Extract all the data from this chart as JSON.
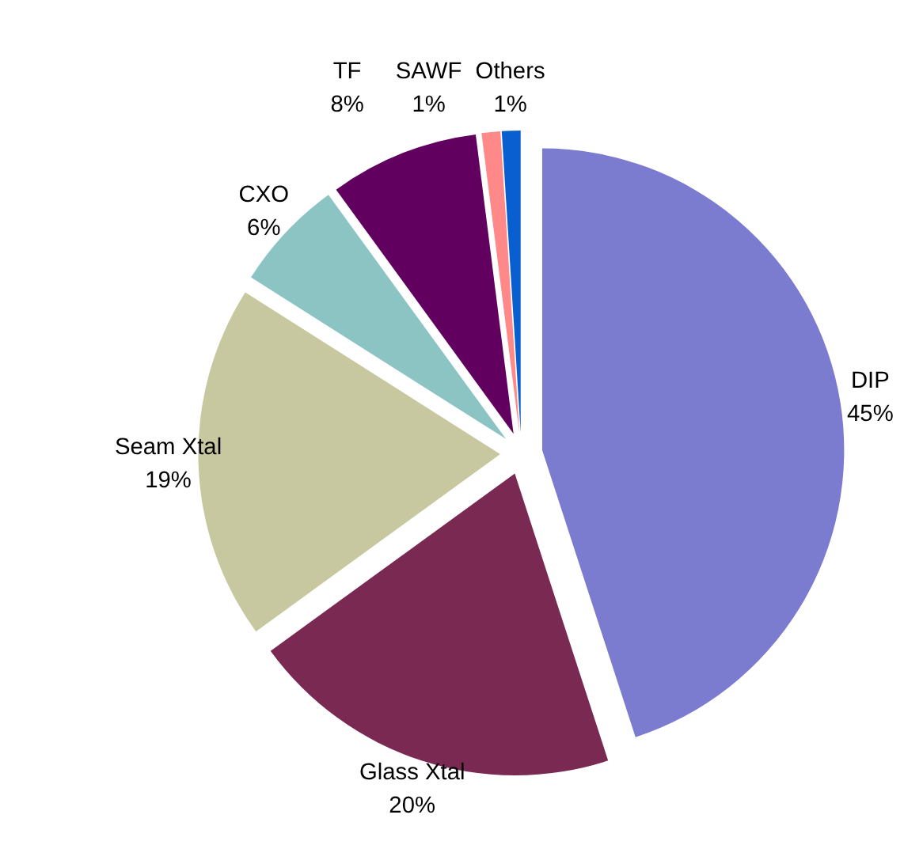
{
  "chart_data": {
    "type": "pie",
    "categories": [
      "DIP",
      "Glass Xtal",
      "Seam Xtal",
      "CXO",
      "TF",
      "SAWF",
      "Others"
    ],
    "values": [
      45,
      20,
      19,
      6,
      8,
      1,
      1
    ],
    "value_labels": [
      "45%",
      "20%",
      "19%",
      "6%",
      "8%",
      "1%",
      "1%"
    ],
    "colors": [
      "#7b7bd0",
      "#7a2a52",
      "#c8c8a0",
      "#8cc4c4",
      "#620060",
      "#ff8888",
      "#0a5fd0"
    ]
  }
}
